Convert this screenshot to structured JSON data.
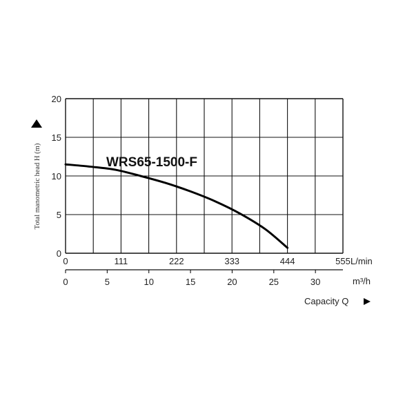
{
  "chart_data": {
    "type": "line",
    "ylabel": "Total manometric head H (m)",
    "y_ticks": [
      "0",
      "5",
      "10",
      "15",
      "20"
    ],
    "ylim": [
      0,
      20
    ],
    "x_axes": [
      {
        "unit": "L/min",
        "ticks": [
          "0",
          "111",
          "222",
          "333",
          "444",
          "555"
        ],
        "range": [
          0,
          555
        ]
      },
      {
        "unit": "m³/h",
        "ticks": [
          "0",
          "5",
          "10",
          "15",
          "20",
          "25",
          "30"
        ],
        "range": [
          0,
          33.3
        ]
      }
    ],
    "x_caption": "Capacity Q",
    "grid": true,
    "grid_columns": 10,
    "grid_rows": 4,
    "series": [
      {
        "name": "WRS65-1500-F",
        "x_unit": "L/min",
        "x": [
          0,
          50,
          100,
          150,
          200,
          250,
          300,
          350,
          400,
          444
        ],
        "y": [
          11.5,
          11.2,
          10.8,
          10.0,
          9.1,
          8.0,
          6.7,
          5.1,
          3.1,
          0.7
        ]
      }
    ]
  }
}
